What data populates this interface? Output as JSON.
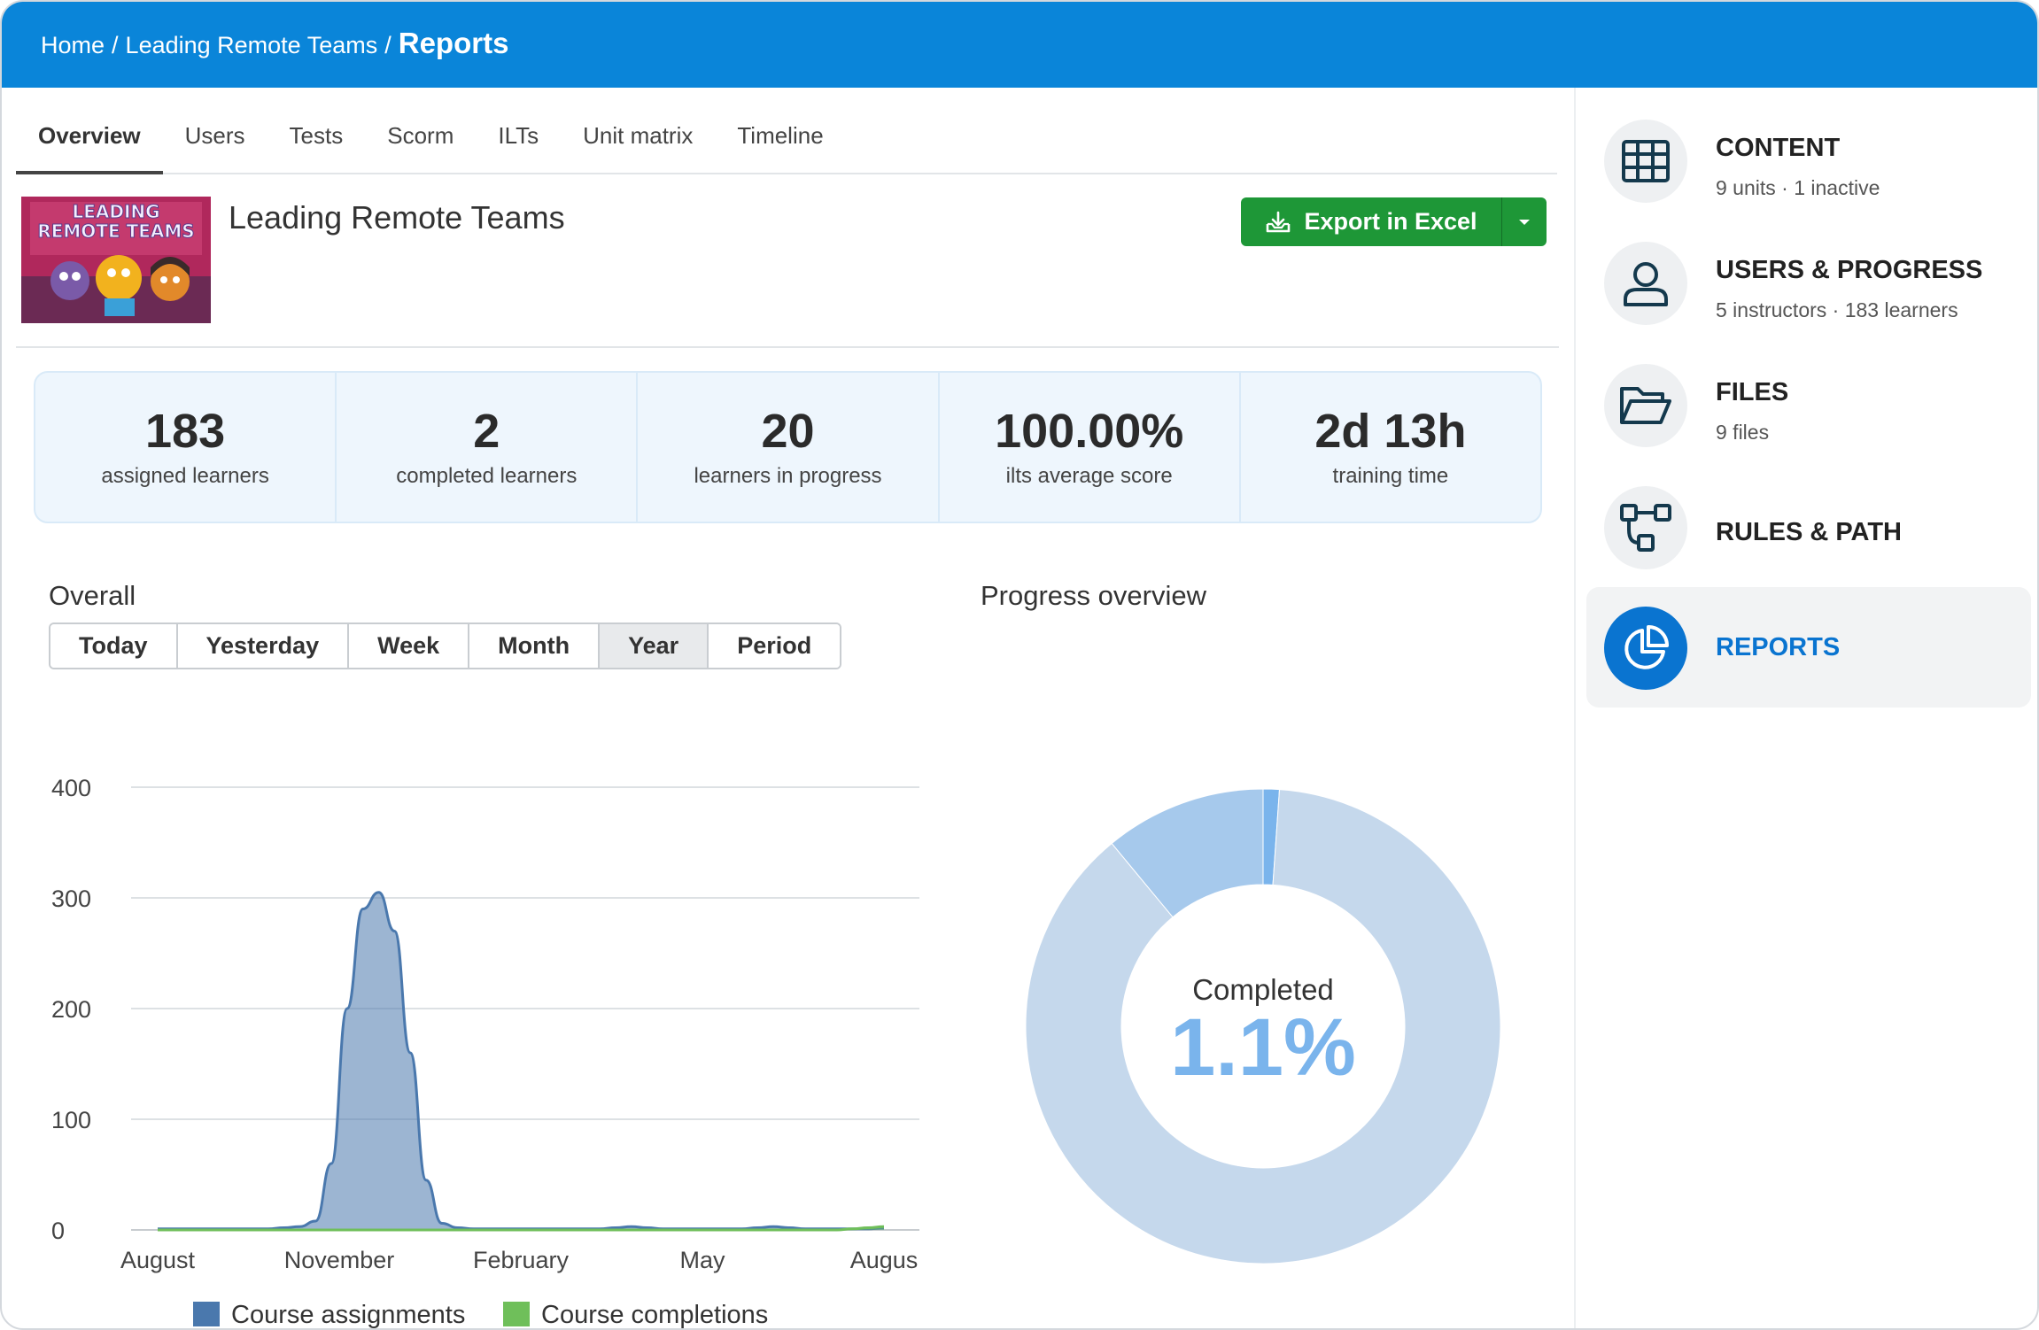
{
  "breadcrumb": {
    "home": "Home",
    "sep1": "/",
    "course": "Leading Remote Teams",
    "sep2": "/",
    "current": "Reports"
  },
  "tabs": [
    {
      "label": "Overview",
      "active": true
    },
    {
      "label": "Users"
    },
    {
      "label": "Tests"
    },
    {
      "label": "Scorm"
    },
    {
      "label": "ILTs"
    },
    {
      "label": "Unit matrix"
    },
    {
      "label": "Timeline"
    }
  ],
  "course": {
    "title": "Leading Remote Teams",
    "thumbnail_text_line1": "LEADING",
    "thumbnail_text_line2": "REMOTE TEAMS"
  },
  "export": {
    "label": "Export in Excel",
    "icon": "download-icon",
    "color": "#1e9737"
  },
  "stats": [
    {
      "value": "183",
      "label": "assigned learners"
    },
    {
      "value": "2",
      "label": "completed learners"
    },
    {
      "value": "20",
      "label": "learners in progress"
    },
    {
      "value": "100.00%",
      "label": "ilts average score"
    },
    {
      "value": "2d 13h",
      "label": "training time"
    }
  ],
  "overall": {
    "title": "Overall",
    "ranges": [
      "Today",
      "Yesterday",
      "Week",
      "Month",
      "Year",
      "Period"
    ],
    "active_range": "Year"
  },
  "chart_data": [
    {
      "type": "area",
      "title": "Overall",
      "x_tick_labels": [
        "August",
        "November",
        "February",
        "May",
        "Augus"
      ],
      "y_ticks": [
        0,
        100,
        200,
        300,
        400
      ],
      "ylim": [
        0,
        400
      ],
      "grid": true,
      "legend": "bottom",
      "series": [
        {
          "name": "Course assignments",
          "color": "#4a78ad",
          "values": [
            1,
            1,
            1,
            1,
            1,
            1,
            1,
            1,
            2,
            3,
            8,
            60,
            200,
            290,
            305,
            270,
            160,
            45,
            6,
            2,
            1,
            1,
            1,
            1,
            1,
            1,
            1,
            1,
            1,
            2,
            3,
            2,
            1,
            1,
            1,
            1,
            1,
            1,
            2,
            3,
            2,
            1,
            1,
            1,
            1,
            1,
            2
          ]
        },
        {
          "name": "Course completions",
          "color": "#6fbf5a",
          "values": [
            0,
            0,
            0,
            0,
            0,
            0,
            0,
            0,
            0,
            0,
            0,
            0,
            0,
            0,
            0,
            0,
            0,
            0,
            0,
            0,
            0,
            0,
            0,
            0,
            0,
            0,
            0,
            0,
            0,
            0,
            0,
            0,
            0,
            0,
            0,
            0,
            0,
            0,
            0,
            0,
            0,
            0,
            0,
            0,
            1,
            2,
            3
          ]
        }
      ]
    },
    {
      "type": "pie",
      "title": "Progress overview",
      "center_label": "Completed",
      "center_value": "1.1%",
      "slices": [
        {
          "value": 1.1,
          "color": "#7ab4ec"
        },
        {
          "value": 87.9,
          "color": "#c5d8ec"
        },
        {
          "value": 11.0,
          "color": "#a6c9ec"
        }
      ]
    }
  ],
  "sidebar": {
    "items": [
      {
        "name": "CONTENT",
        "sub": "9 units · 1 inactive",
        "icon": "grid-icon"
      },
      {
        "name": "USERS & PROGRESS",
        "sub": "5 instructors · 183 learners",
        "icon": "user-icon"
      },
      {
        "name": "FILES",
        "sub": "9 files",
        "icon": "folder-icon"
      },
      {
        "name": "RULES & PATH",
        "sub": "",
        "icon": "flow-icon"
      },
      {
        "name": "REPORTS",
        "sub": "",
        "icon": "pie-chart-icon",
        "active": true
      }
    ]
  }
}
